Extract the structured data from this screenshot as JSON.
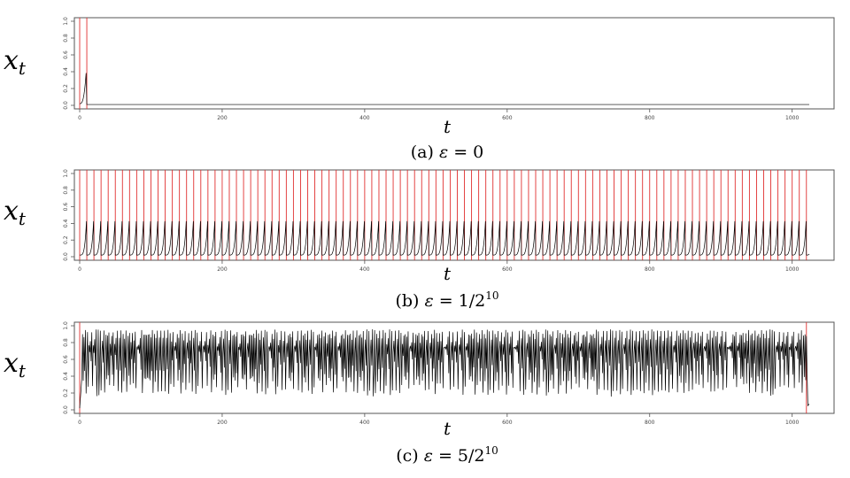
{
  "chart_data": [
    {
      "type": "line",
      "panel": "(a)",
      "caption_prefix": "(a) ",
      "caption_eps": "ε",
      "caption_value": " = 0",
      "caption_sup": "",
      "ylabel_main": "x",
      "ylabel_sub": "t",
      "xlabel": "t",
      "xlim": [
        0,
        1024
      ],
      "ylim": [
        0,
        1
      ],
      "x_ticks": [
        0,
        200,
        400,
        600,
        800,
        1000
      ],
      "y_ticks": [
        "0.0",
        "0.2",
        "0.4",
        "0.6",
        "0.8",
        "1.0"
      ],
      "series_color": "#000000",
      "event_color": "#e03030",
      "pattern": "decay_once",
      "event_times": [
        0,
        10
      ],
      "peak_value": 0.5
    },
    {
      "type": "line",
      "panel": "(b)",
      "caption_prefix": "(b) ",
      "caption_eps": "ε",
      "caption_value": " = 1/2",
      "caption_sup": "10",
      "ylabel_main": "x",
      "ylabel_sub": "t",
      "xlabel": "t",
      "xlim": [
        0,
        1024
      ],
      "ylim": [
        0,
        1
      ],
      "x_ticks": [
        0,
        200,
        400,
        600,
        800,
        1000
      ],
      "y_ticks": [
        "0.0",
        "0.2",
        "0.4",
        "0.6",
        "0.8",
        "1.0"
      ],
      "series_color": "#000000",
      "event_color": "#e03030",
      "pattern": "periodic_spikes",
      "event_period": 10,
      "event_start": 0,
      "peak_value": 0.5
    },
    {
      "type": "line",
      "panel": "(c)",
      "caption_prefix": "(c) ",
      "caption_eps": "ε",
      "caption_value": " = 5/2",
      "caption_sup": "10",
      "ylabel_main": "x",
      "ylabel_sub": "t",
      "xlabel": "t",
      "xlim": [
        0,
        1024
      ],
      "ylim": [
        0,
        1
      ],
      "x_ticks": [
        0,
        200,
        400,
        600,
        800,
        1000
      ],
      "y_ticks": [
        "0.0",
        "0.2",
        "0.4",
        "0.6",
        "0.8",
        "1.0"
      ],
      "series_color": "#000000",
      "event_color": "#e03030",
      "pattern": "chaotic",
      "event_times": [
        0,
        1020
      ],
      "value_range": [
        0.0,
        0.98
      ]
    }
  ]
}
